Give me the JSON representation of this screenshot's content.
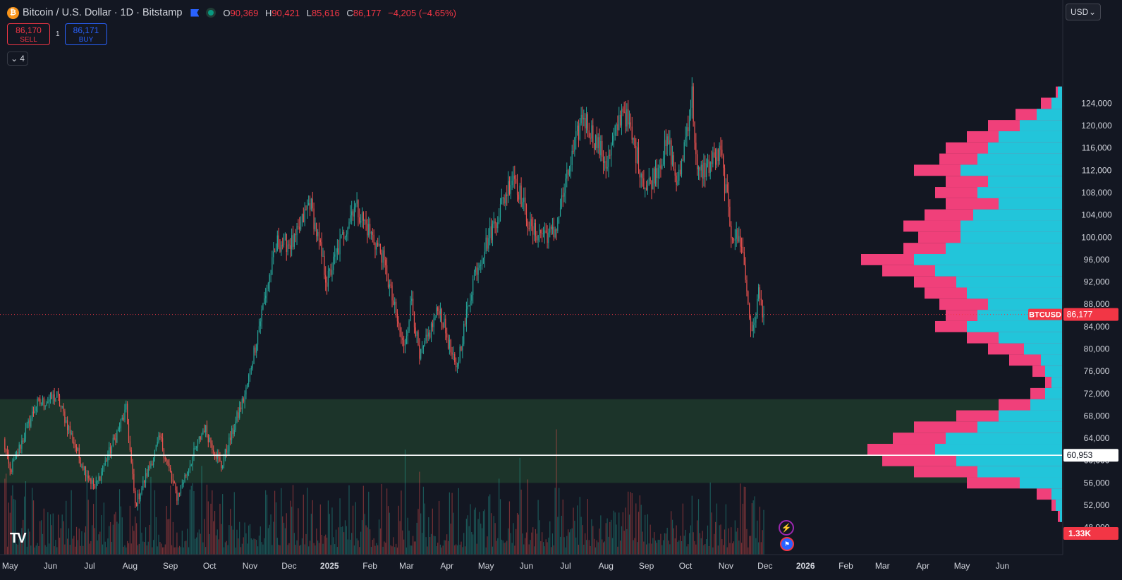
{
  "header": {
    "coin_glyph": "₿",
    "title": "Bitcoin / U.S. Dollar · 1D · Bitstamp",
    "open_label": "O",
    "open": "90,369",
    "high_label": "H",
    "high": "90,421",
    "low_label": "L",
    "low": "85,616",
    "close_label": "C",
    "close": "86,177",
    "change": "−4,205 (−4.65%)"
  },
  "trade": {
    "sell_price": "86,170",
    "sell_label": "SELL",
    "buy_price": "86,171",
    "buy_label": "BUY",
    "spread": "1"
  },
  "indicators_toggle": {
    "count": "4"
  },
  "currency": {
    "label": "USD"
  },
  "logo": {
    "text": "TV"
  },
  "colors": {
    "background": "#131722",
    "up": "#26a69a",
    "down": "#ef5350",
    "zone": "#1f3a2b",
    "profile_pink": "#f0407a",
    "profile_cyan": "#22c5da",
    "price_badge": "#f23645"
  },
  "chart_data": {
    "type": "candlestick",
    "symbol": "BTCUSD",
    "interval": "1D",
    "y_axis": {
      "range": [
        47000,
        126000
      ],
      "ticks": [
        "48,000",
        "52,000",
        "56,000",
        "60,000",
        "64,000",
        "68,000",
        "72,000",
        "76,000",
        "80,000",
        "84,000",
        "88,000",
        "92,000",
        "96,000",
        "100,000",
        "104,000",
        "108,000",
        "112,000",
        "116,000",
        "120,000",
        "124,000"
      ]
    },
    "x_axis": {
      "labels": [
        "May",
        "Jun",
        "Jul",
        "Aug",
        "Sep",
        "Oct",
        "Nov",
        "Dec",
        "2025",
        "Feb",
        "Mar",
        "Apr",
        "May",
        "Jun",
        "Jul",
        "Aug",
        "Sep",
        "Oct",
        "Nov",
        "Dec",
        "2026",
        "Feb",
        "Mar",
        "Apr",
        "May",
        "Jun"
      ],
      "start": "2024-04-26",
      "end": "2026-06-30"
    },
    "price_path": [
      [
        "2024-04-26",
        63500
      ],
      [
        "2024-05-01",
        58000
      ],
      [
        "2024-05-21",
        70000
      ],
      [
        "2024-06-06",
        71500
      ],
      [
        "2024-06-24",
        60000
      ],
      [
        "2024-07-05",
        55000
      ],
      [
        "2024-07-29",
        69000
      ],
      [
        "2024-08-05",
        52000
      ],
      [
        "2024-08-24",
        64000
      ],
      [
        "2024-09-06",
        53500
      ],
      [
        "2024-09-27",
        66000
      ],
      [
        "2024-10-10",
        59000
      ],
      [
        "2024-10-29",
        72500
      ],
      [
        "2024-11-13",
        90000
      ],
      [
        "2024-11-22",
        99000
      ],
      [
        "2024-12-05",
        99000
      ],
      [
        "2024-12-17",
        106500
      ],
      [
        "2024-12-30",
        92000
      ],
      [
        "2025-01-20",
        106000
      ],
      [
        "2025-02-10",
        97000
      ],
      [
        "2025-02-27",
        80000
      ],
      [
        "2025-03-05",
        89000
      ],
      [
        "2025-03-11",
        78000
      ],
      [
        "2025-03-26",
        87500
      ],
      [
        "2025-04-08",
        76000
      ],
      [
        "2025-04-22",
        93500
      ],
      [
        "2025-05-10",
        104000
      ],
      [
        "2025-05-22",
        111500
      ],
      [
        "2025-06-05",
        101000
      ],
      [
        "2025-06-22",
        100500
      ],
      [
        "2025-07-14",
        122000
      ],
      [
        "2025-08-02",
        113000
      ],
      [
        "2025-08-14",
        123500
      ],
      [
        "2025-09-01",
        108500
      ],
      [
        "2025-09-18",
        117000
      ],
      [
        "2025-09-25",
        109000
      ],
      [
        "2025-10-06",
        125500
      ],
      [
        "2025-10-10",
        111000
      ],
      [
        "2025-10-28",
        115000
      ],
      [
        "2025-11-05",
        101000
      ],
      [
        "2025-11-13",
        99000
      ],
      [
        "2025-11-21",
        82000
      ],
      [
        "2025-11-26",
        90000
      ],
      [
        "2025-11-30",
        86177
      ]
    ],
    "last_price": {
      "label": "BTCUSD",
      "value": "86,177",
      "y": 86177
    },
    "horizontal_line": {
      "value": "60,953",
      "y": 60953
    },
    "zone": {
      "from": 56000,
      "to": 71000
    },
    "volume_badge": "1.33K",
    "volume_profile": {
      "bins": [
        [
          50000,
          2,
          1
        ],
        [
          52000,
          5,
          3
        ],
        [
          54000,
          12,
          5
        ],
        [
          56000,
          45,
          20
        ],
        [
          58000,
          70,
          40
        ],
        [
          60000,
          85,
          50
        ],
        [
          62000,
          92,
          60
        ],
        [
          64000,
          80,
          55
        ],
        [
          66000,
          70,
          40
        ],
        [
          68000,
          50,
          30
        ],
        [
          70000,
          30,
          15
        ],
        [
          72000,
          15,
          8
        ],
        [
          74000,
          8,
          5
        ],
        [
          76000,
          14,
          8
        ],
        [
          78000,
          25,
          10
        ],
        [
          80000,
          35,
          18
        ],
        [
          82000,
          45,
          30
        ],
        [
          84000,
          60,
          45
        ],
        [
          86000,
          55,
          40
        ],
        [
          88000,
          58,
          35
        ],
        [
          90000,
          65,
          45
        ],
        [
          92000,
          70,
          50
        ],
        [
          94000,
          85,
          60
        ],
        [
          96000,
          95,
          70
        ],
        [
          98000,
          75,
          55
        ],
        [
          100000,
          68,
          48
        ],
        [
          102000,
          75,
          48
        ],
        [
          104000,
          65,
          42
        ],
        [
          106000,
          55,
          30
        ],
        [
          108000,
          60,
          40
        ],
        [
          110000,
          55,
          35
        ],
        [
          112000,
          70,
          48
        ],
        [
          114000,
          58,
          40
        ],
        [
          116000,
          55,
          35
        ],
        [
          118000,
          45,
          30
        ],
        [
          120000,
          35,
          20
        ],
        [
          122000,
          22,
          12
        ],
        [
          124000,
          10,
          5
        ],
        [
          126000,
          3,
          2
        ]
      ]
    }
  }
}
